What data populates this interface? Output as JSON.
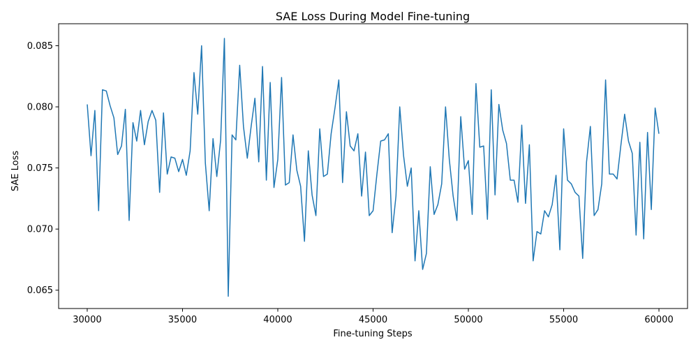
{
  "chart_data": {
    "type": "line",
    "title": "SAE Loss During Model Fine-tuning",
    "xlabel": "Fine-tuning Steps",
    "ylabel": "SAE Loss",
    "xlim": [
      28500,
      61500
    ],
    "ylim": [
      0.0635,
      0.0868
    ],
    "xticks": [
      30000,
      35000,
      40000,
      45000,
      50000,
      55000,
      60000
    ],
    "xtick_labels": [
      "30000",
      "35000",
      "40000",
      "45000",
      "50000",
      "55000",
      "60000"
    ],
    "yticks": [
      0.065,
      0.07,
      0.075,
      0.08,
      0.085
    ],
    "ytick_labels": [
      "0.065",
      "0.070",
      "0.075",
      "0.080",
      "0.085"
    ],
    "grid": false,
    "line_color": "#1f77b4",
    "series": [
      {
        "x": [
          30000,
          30200,
          30400,
          30600,
          30800,
          31000,
          31200,
          31400,
          31600,
          31800,
          32000,
          32200,
          32400,
          32600,
          32800,
          33000,
          33200,
          33400,
          33600,
          33800,
          34000,
          34200,
          34400,
          34600,
          34800,
          35000,
          35200,
          35400,
          35600,
          35800,
          36000,
          36200,
          36400,
          36600,
          36800,
          37000,
          37200,
          37400,
          37600,
          37800,
          38000,
          38200,
          38400,
          38600,
          38800,
          39000,
          39200,
          39400,
          39600,
          39800,
          40000,
          40200,
          40400,
          40600,
          40800,
          41000,
          41200,
          41400,
          41600,
          41800,
          42000,
          42200,
          42400,
          42600,
          42800,
          43000,
          43200,
          43400,
          43600,
          43800,
          44000,
          44200,
          44400,
          44600,
          44800,
          45000,
          45200,
          45400,
          45600,
          45800,
          46000,
          46200,
          46400,
          46600,
          46800,
          47000,
          47200,
          47400,
          47600,
          47800,
          48000,
          48200,
          48400,
          48600,
          48800,
          49000,
          49200,
          49400,
          49600,
          49800,
          50000,
          50200,
          50400,
          50600,
          50800,
          51000,
          51200,
          51400,
          51600,
          51800,
          52000,
          52200,
          52400,
          52600,
          52800,
          53000,
          53200,
          53400,
          53600,
          53800,
          54000,
          54200,
          54400,
          54600,
          54800,
          55000,
          55200,
          55400,
          55600,
          55800,
          56000,
          56200,
          56400,
          56600,
          56800,
          57000,
          57200,
          57400,
          57600,
          57800,
          58000,
          58200,
          58400,
          58600,
          58800,
          59000,
          59200,
          59400,
          59600,
          59800,
          60000
        ],
        "y": [
          0.0802,
          0.076,
          0.0797,
          0.0715,
          0.0814,
          0.0813,
          0.0801,
          0.0791,
          0.0761,
          0.0768,
          0.0798,
          0.0707,
          0.0787,
          0.0772,
          0.0797,
          0.0769,
          0.0788,
          0.0797,
          0.0789,
          0.073,
          0.0795,
          0.0745,
          0.0759,
          0.0758,
          0.0747,
          0.0757,
          0.0744,
          0.0764,
          0.0828,
          0.0794,
          0.085,
          0.0754,
          0.0715,
          0.0774,
          0.0743,
          0.0773,
          0.0856,
          0.0645,
          0.0777,
          0.0773,
          0.0834,
          0.0784,
          0.0758,
          0.0784,
          0.0807,
          0.0755,
          0.0833,
          0.074,
          0.082,
          0.0734,
          0.0757,
          0.0824,
          0.0736,
          0.0738,
          0.0777,
          0.0748,
          0.0735,
          0.069,
          0.0764,
          0.0728,
          0.0711,
          0.0782,
          0.0743,
          0.0745,
          0.0778,
          0.0799,
          0.0822,
          0.0738,
          0.0796,
          0.0768,
          0.0764,
          0.0778,
          0.0727,
          0.0763,
          0.0711,
          0.0715,
          0.0745,
          0.0772,
          0.0773,
          0.0778,
          0.0697,
          0.0727,
          0.08,
          0.076,
          0.0735,
          0.075,
          0.0674,
          0.0715,
          0.0667,
          0.068,
          0.0751,
          0.0712,
          0.072,
          0.0737,
          0.08,
          0.0757,
          0.0727,
          0.0707,
          0.0792,
          0.0749,
          0.0756,
          0.0712,
          0.0819,
          0.0767,
          0.0768,
          0.0708,
          0.0814,
          0.0728,
          0.0802,
          0.0781,
          0.077,
          0.074,
          0.074,
          0.0722,
          0.0785,
          0.0721,
          0.0769,
          0.0674,
          0.0698,
          0.0696,
          0.0715,
          0.071,
          0.072,
          0.0744,
          0.0683,
          0.0782,
          0.074,
          0.0737,
          0.073,
          0.0727,
          0.0676,
          0.0755,
          0.0784,
          0.0711,
          0.0716,
          0.0737,
          0.0822,
          0.0745,
          0.0745,
          0.0741,
          0.0768,
          0.0794,
          0.0772,
          0.0762,
          0.0695,
          0.0771,
          0.0692,
          0.0779,
          0.0716,
          0.0799,
          0.0778
        ]
      }
    ]
  }
}
